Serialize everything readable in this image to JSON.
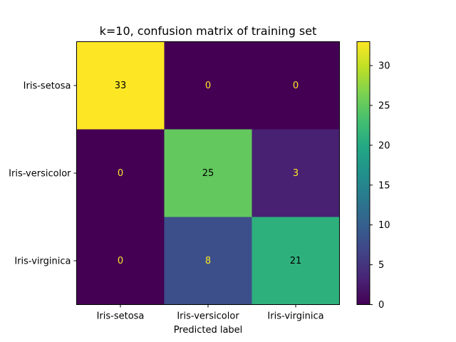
{
  "chart_data": {
    "type": "heatmap",
    "title": "k=10, confusion matrix of training set",
    "xlabel": "Predicted label",
    "ylabel": "",
    "row_labels": [
      "Iris-setosa",
      "Iris-versicolor",
      "Iris-virginica"
    ],
    "col_labels": [
      "Iris-setosa",
      "Iris-versicolor",
      "Iris-virginica"
    ],
    "values": [
      [
        33,
        0,
        0
      ],
      [
        0,
        25,
        3
      ],
      [
        0,
        8,
        21
      ]
    ],
    "colormap": "viridis",
    "colorbar": {
      "min": 0,
      "max": 33,
      "ticks": [
        0,
        5,
        10,
        15,
        20,
        25,
        30
      ]
    },
    "text_color_light": "#fde725",
    "text_color_dark": "#000000"
  }
}
